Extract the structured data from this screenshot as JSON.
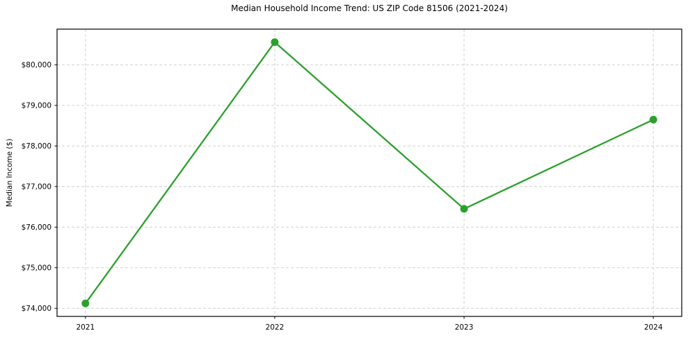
{
  "chart_data": {
    "type": "line",
    "title": "Median Household Income Trend: US ZIP Code 81506 (2021-2024)",
    "xlabel": "",
    "ylabel": "Median Income ($)",
    "categories": [
      2021,
      2022,
      2023,
      2024
    ],
    "xtick_labels": [
      "2021",
      "2022",
      "2023",
      "2024"
    ],
    "values": [
      74120,
      80560,
      76450,
      78650
    ],
    "yticks": [
      74000,
      75000,
      76000,
      77000,
      78000,
      79000,
      80000
    ],
    "ytick_labels": [
      "$74,000",
      "$75,000",
      "$76,000",
      "$77,000",
      "$78,000",
      "$79,000",
      "$80,000"
    ],
    "xlim": [
      2020.85,
      2024.15
    ],
    "ylim": [
      73800,
      80880
    ],
    "grid": true,
    "legend_position": "none",
    "series_name": "Median Household Income",
    "line_color": "#2ca02c",
    "marker": "circle",
    "grid_color": "#cccccc",
    "spine_color": "#000000",
    "background_color": "#ffffff"
  }
}
